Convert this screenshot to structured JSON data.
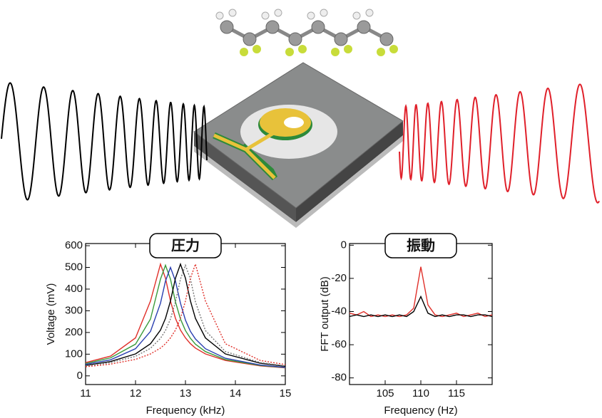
{
  "chart_data": [
    {
      "type": "line",
      "title": "圧力",
      "x_label": "Frequency (kHz)",
      "y_label": "Voltage (mV)",
      "xlim": [
        11,
        15
      ],
      "xticks": [
        11,
        12,
        13,
        14,
        15
      ],
      "ylim": [
        -40,
        610
      ],
      "yticks": [
        0,
        100,
        200,
        300,
        400,
        500,
        600
      ],
      "x": [
        11,
        11.5,
        12,
        12.3,
        12.5,
        12.6,
        12.7,
        12.8,
        12.9,
        13.0,
        13.1,
        13.2,
        13.4,
        13.8,
        14.5,
        15
      ],
      "series": [
        {
          "color": "#e0302a",
          "style": "solid",
          "values": [
            61,
            91,
            175,
            345,
            515,
            450,
            345,
            265,
            211,
            175,
            148,
            128,
            101,
            71,
            46,
            37
          ]
        },
        {
          "color": "#3a9a3a",
          "style": "solid",
          "values": [
            57,
            83,
            146,
            262,
            446,
            510,
            446,
            341,
            262,
            209,
            173,
            146,
            112,
            75,
            48,
            38
          ]
        },
        {
          "color": "#2a3fb0",
          "style": "solid",
          "values": [
            53,
            74,
            125,
            205,
            335,
            437,
            500,
            437,
            335,
            257,
            205,
            170,
            125,
            81,
            50,
            39
          ]
        },
        {
          "color": "#000000",
          "style": "solid",
          "values": [
            48,
            66,
            101,
            148,
            211,
            265,
            345,
            450,
            515,
            450,
            345,
            265,
            175,
            101,
            58,
            44
          ]
        },
        {
          "color": "#777777",
          "style": "dotted",
          "values": [
            46,
            61,
            90,
            127,
            173,
            209,
            262,
            341,
            446,
            510,
            446,
            341,
            209,
            112,
            61,
            46
          ]
        },
        {
          "color": "#e0302a",
          "style": "dotted",
          "values": [
            42,
            54,
            76,
            101,
            128,
            148,
            175,
            211,
            265,
            345,
            450,
            515,
            345,
            148,
            71,
            52
          ]
        }
      ]
    },
    {
      "type": "line",
      "title": "振動",
      "x_label": "Frequency (Hz)",
      "y_label": "FFT output (dB)",
      "xlim": [
        100,
        120
      ],
      "xticks": [
        105,
        110,
        115
      ],
      "ylim": [
        -84,
        1
      ],
      "yticks": [
        0,
        -20,
        -40,
        -60,
        -80
      ],
      "x": [
        100,
        101,
        102,
        103,
        104,
        105,
        106,
        107,
        108,
        109,
        110,
        111,
        112,
        113,
        114,
        115,
        116,
        117,
        118,
        119,
        120
      ],
      "series": [
        {
          "color": "#e0302a",
          "style": "solid",
          "values": [
            -41,
            -42,
            -40,
            -43,
            -42,
            -43,
            -42,
            -43,
            -42,
            -38,
            -13,
            -36,
            -42,
            -43,
            -42,
            -41,
            -43,
            -42,
            -41,
            -43,
            -42
          ]
        },
        {
          "color": "#000000",
          "style": "solid",
          "values": [
            -43,
            -42,
            -43,
            -42,
            -43,
            -42,
            -43,
            -42,
            -43,
            -40,
            -31,
            -41,
            -43,
            -42,
            -43,
            -42,
            -42,
            -43,
            -42,
            -42,
            -43
          ]
        }
      ]
    }
  ]
}
